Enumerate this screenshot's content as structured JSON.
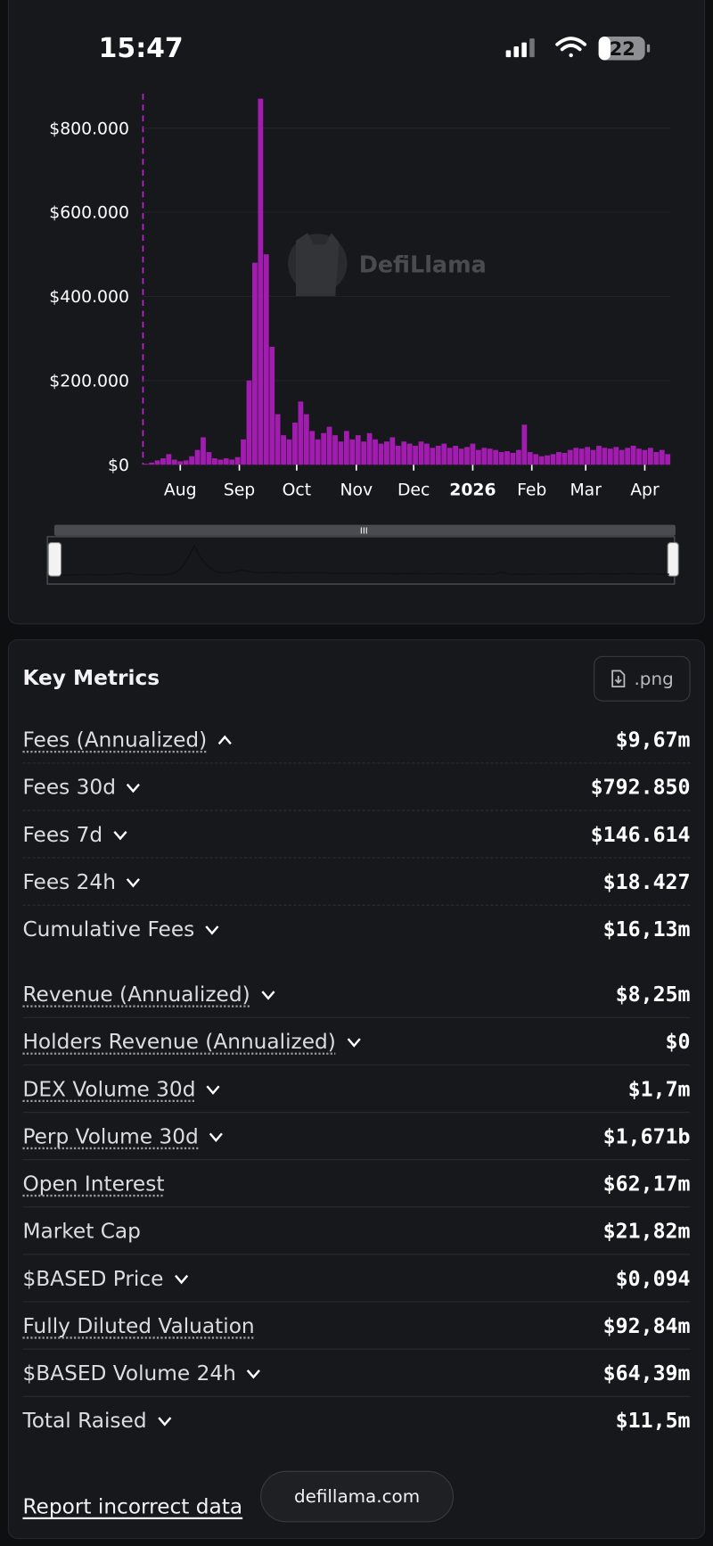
{
  "status_bar": {
    "time": "15:47",
    "battery": "22"
  },
  "watermark": "DefiLlama",
  "chart_data": {
    "type": "bar",
    "color": "#a21caf",
    "values": [
      2000,
      5000,
      10000,
      15000,
      25000,
      12000,
      8000,
      10000,
      20000,
      35000,
      65000,
      30000,
      15000,
      12000,
      15000,
      12000,
      18000,
      60000,
      200000,
      480000,
      870000,
      500000,
      280000,
      120000,
      70000,
      60000,
      100000,
      150000,
      120000,
      80000,
      60000,
      75000,
      90000,
      70000,
      55000,
      80000,
      60000,
      70000,
      55000,
      75000,
      60000,
      50000,
      55000,
      65000,
      45000,
      55000,
      50000,
      45000,
      55000,
      50000,
      40000,
      45000,
      50000,
      40000,
      45000,
      38000,
      42000,
      50000,
      35000,
      40000,
      38000,
      35000,
      30000,
      32000,
      28000,
      35000,
      95000,
      30000,
      25000,
      20000,
      22000,
      25000,
      30000,
      28000,
      35000,
      40000,
      38000,
      42000,
      35000,
      45000,
      40000,
      38000,
      42000,
      35000,
      40000,
      45000,
      38000,
      35000,
      40000,
      30000,
      35000,
      25000
    ],
    "xlim": [
      -0.5,
      91.5
    ],
    "xticks": [
      {
        "value": 6,
        "label": "Aug"
      },
      {
        "value": 16.3,
        "label": "Sep"
      },
      {
        "value": 26.3,
        "label": "Oct"
      },
      {
        "value": 36.7,
        "label": "Nov"
      },
      {
        "value": 46.7,
        "label": "Dec"
      },
      {
        "value": 57,
        "label": "2026"
      },
      {
        "value": 67.3,
        "label": "Feb"
      },
      {
        "value": 76.7,
        "label": "Mar"
      },
      {
        "value": 87,
        "label": "Apr"
      }
    ],
    "ylim": [
      0,
      870000
    ],
    "yticks": [
      {
        "value": 0,
        "label": "$0"
      },
      {
        "value": 200000,
        "label": "$200.000"
      },
      {
        "value": 400000,
        "label": "$400.000"
      },
      {
        "value": 600000,
        "label": "$600.000"
      },
      {
        "value": 800000,
        "label": "$800.000"
      }
    ],
    "grid": true
  },
  "key_metrics": {
    "title": "Key Metrics",
    "export_button": ".png",
    "groups": [
      [
        {
          "label": "Fees (Annualized)",
          "value": "$9,67m",
          "underline": true,
          "chevron": "up"
        },
        {
          "label": "Fees 30d",
          "value": "$792.850",
          "underline": false,
          "chevron": "down"
        },
        {
          "label": "Fees 7d",
          "value": "$146.614",
          "underline": false,
          "chevron": "down"
        },
        {
          "label": "Fees 24h",
          "value": "$18.427",
          "underline": false,
          "chevron": "down"
        },
        {
          "label": "Cumulative Fees",
          "value": "$16,13m",
          "underline": false,
          "chevron": "down"
        }
      ],
      [
        {
          "label": "Revenue (Annualized)",
          "value": "$8,25m",
          "underline": true,
          "chevron": "down"
        },
        {
          "label": "Holders Revenue (Annualized)",
          "value": "$0",
          "underline": true,
          "chevron": "down"
        },
        {
          "label": "DEX Volume 30d",
          "value": "$1,7m",
          "underline": true,
          "chevron": "down"
        },
        {
          "label": "Perp Volume 30d",
          "value": "$1,671b",
          "underline": true,
          "chevron": "down"
        },
        {
          "label": "Open Interest",
          "value": "$62,17m",
          "underline": true,
          "chevron": "none"
        },
        {
          "label": "Market Cap",
          "value": "$21,82m",
          "underline": false,
          "chevron": "none"
        },
        {
          "label": "$BASED Price",
          "value": "$0,094",
          "underline": false,
          "chevron": "down"
        },
        {
          "label": "Fully Diluted Valuation",
          "value": "$92,84m",
          "underline": true,
          "chevron": "none"
        },
        {
          "label": "$BASED Volume 24h",
          "value": "$64,39m",
          "underline": false,
          "chevron": "down"
        },
        {
          "label": "Total Raised",
          "value": "$11,5m",
          "underline": false,
          "chevron": "down"
        }
      ]
    ]
  },
  "footer": {
    "report_link": "Report incorrect data",
    "site": "defillama.com"
  }
}
